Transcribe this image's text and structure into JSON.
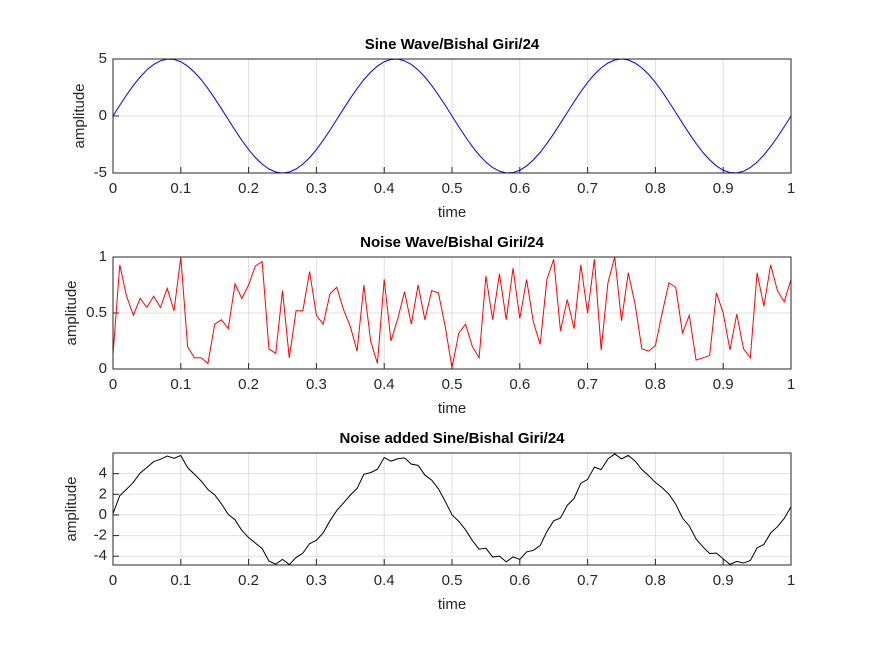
{
  "chart_data": [
    {
      "type": "line",
      "title": "Sine Wave/Bishal Giri/24",
      "xlabel": "time",
      "ylabel": "amplitude",
      "x": [
        0,
        0.01,
        0.02,
        0.03,
        0.04,
        0.05,
        0.06,
        0.07,
        0.08,
        0.09,
        0.1,
        0.11,
        0.12,
        0.13,
        0.14,
        0.15,
        0.16,
        0.17,
        0.18,
        0.19,
        0.2,
        0.21,
        0.22,
        0.23,
        0.24,
        0.25,
        0.26,
        0.27,
        0.28,
        0.29,
        0.3,
        0.31,
        0.32,
        0.33,
        0.34,
        0.35,
        0.36,
        0.37,
        0.38,
        0.39,
        0.4,
        0.41,
        0.42,
        0.43,
        0.44,
        0.45,
        0.46,
        0.47,
        0.48,
        0.49,
        0.5,
        0.51,
        0.52,
        0.53,
        0.54,
        0.55,
        0.56,
        0.57,
        0.58,
        0.59,
        0.6,
        0.61,
        0.62,
        0.63,
        0.64,
        0.65,
        0.66,
        0.67,
        0.68,
        0.69,
        0.7,
        0.71,
        0.72,
        0.73,
        0.74,
        0.75,
        0.76,
        0.77,
        0.78,
        0.79,
        0.8,
        0.81,
        0.82,
        0.83,
        0.84,
        0.85,
        0.86,
        0.87,
        0.88,
        0.89,
        0.9,
        0.91,
        0.92,
        0.93,
        0.94,
        0.95,
        0.96,
        0.97,
        0.98,
        0.99,
        1
      ],
      "series": [
        {
          "color": "#0000ff",
          "values": [
            0,
            0.94,
            1.84,
            2.68,
            3.42,
            4.05,
            4.52,
            4.84,
            4.99,
            4.96,
            4.76,
            4.38,
            3.85,
            3.19,
            2.41,
            1.55,
            0.63,
            -0.31,
            -1.24,
            -2.13,
            -2.94,
            -3.65,
            -4.22,
            -4.65,
            -4.91,
            -5,
            -4.91,
            -4.65,
            -4.22,
            -3.65,
            -2.94,
            -2.13,
            -1.24,
            -0.31,
            0.63,
            1.55,
            2.41,
            3.19,
            3.85,
            4.38,
            4.76,
            4.96,
            4.99,
            4.84,
            4.52,
            4.05,
            3.42,
            2.68,
            1.84,
            0.94,
            0,
            -0.94,
            -1.84,
            -2.68,
            -3.42,
            -4.05,
            -4.52,
            -4.84,
            -4.99,
            -4.96,
            -4.76,
            -4.38,
            -3.85,
            -3.19,
            -2.41,
            -1.55,
            -0.63,
            0.31,
            1.24,
            2.13,
            2.94,
            3.65,
            4.22,
            4.65,
            4.91,
            5,
            4.91,
            4.65,
            4.22,
            3.65,
            2.94,
            2.13,
            1.24,
            0.31,
            -0.63,
            -1.55,
            -2.41,
            -3.19,
            -3.85,
            -4.38,
            -4.76,
            -4.96,
            -4.99,
            -4.84,
            -4.52,
            -4.05,
            -3.42,
            -2.68,
            -1.84,
            -0.94,
            0
          ]
        }
      ],
      "xlim": [
        0,
        1
      ],
      "xticks": [
        0,
        0.1,
        0.2,
        0.3,
        0.4,
        0.5,
        0.6,
        0.7,
        0.8,
        0.9,
        1
      ],
      "ylim": [
        -5,
        5
      ],
      "yticks": [
        -5,
        0,
        5
      ],
      "grid": true
    },
    {
      "type": "line",
      "title": "Noise Wave/Bishal Giri/24",
      "xlabel": "time",
      "ylabel": "amplitude",
      "x": [
        0,
        0.01,
        0.02,
        0.03,
        0.04,
        0.05,
        0.06,
        0.07,
        0.08,
        0.09,
        0.1,
        0.11,
        0.12,
        0.13,
        0.14,
        0.15,
        0.16,
        0.17,
        0.18,
        0.19,
        0.2,
        0.21,
        0.22,
        0.23,
        0.24,
        0.25,
        0.26,
        0.27,
        0.28,
        0.29,
        0.3,
        0.31,
        0.32,
        0.33,
        0.34,
        0.35,
        0.36,
        0.37,
        0.38,
        0.39,
        0.4,
        0.41,
        0.42,
        0.43,
        0.44,
        0.45,
        0.46,
        0.47,
        0.48,
        0.49,
        0.5,
        0.51,
        0.52,
        0.53,
        0.54,
        0.55,
        0.56,
        0.57,
        0.58,
        0.59,
        0.6,
        0.61,
        0.62,
        0.63,
        0.64,
        0.65,
        0.66,
        0.67,
        0.68,
        0.69,
        0.7,
        0.71,
        0.72,
        0.73,
        0.74,
        0.75,
        0.76,
        0.77,
        0.78,
        0.79,
        0.8,
        0.81,
        0.82,
        0.83,
        0.84,
        0.85,
        0.86,
        0.87,
        0.88,
        0.89,
        0.9,
        0.91,
        0.92,
        0.93,
        0.94,
        0.95,
        0.96,
        0.97,
        0.98,
        0.99,
        1
      ],
      "series": [
        {
          "color": "#ff0000",
          "values": [
            0.13,
            0.93,
            0.65,
            0.48,
            0.63,
            0.55,
            0.65,
            0.55,
            0.72,
            0.52,
            1.0,
            0.2,
            0.1,
            0.1,
            0.05,
            0.4,
            0.44,
            0.36,
            0.76,
            0.63,
            0.75,
            0.92,
            0.96,
            0.18,
            0.14,
            0.7,
            0.1,
            0.52,
            0.52,
            0.87,
            0.48,
            0.4,
            0.67,
            0.73,
            0.53,
            0.38,
            0.16,
            0.75,
            0.25,
            0.05,
            0.8,
            0.25,
            0.45,
            0.69,
            0.4,
            0.75,
            0.44,
            0.7,
            0.68,
            0.38,
            0.01,
            0.32,
            0.4,
            0.2,
            0.1,
            0.83,
            0.44,
            0.85,
            0.44,
            0.9,
            0.45,
            0.8,
            0.42,
            0.22,
            0.8,
            0.98,
            0.34,
            0.62,
            0.36,
            0.93,
            0.5,
            0.98,
            0.17,
            0.77,
            1.0,
            0.43,
            0.86,
            0.58,
            0.18,
            0.16,
            0.21,
            0.5,
            0.77,
            0.73,
            0.32,
            0.48,
            0.08,
            0.1,
            0.12,
            0.68,
            0.5,
            0.17,
            0.49,
            0.18,
            0.1,
            0.86,
            0.56,
            0.93,
            0.7,
            0.6,
            0.8
          ]
        }
      ],
      "xlim": [
        0,
        1
      ],
      "xticks": [
        0,
        0.1,
        0.2,
        0.3,
        0.4,
        0.5,
        0.6,
        0.7,
        0.8,
        0.9,
        1
      ],
      "ylim": [
        0,
        1
      ],
      "yticks": [
        0,
        0.5,
        1
      ],
      "grid": true
    },
    {
      "type": "line",
      "title": "Noise added Sine/Bishal Giri/24",
      "xlabel": "time",
      "ylabel": "amplitude",
      "x": [
        0,
        0.01,
        0.02,
        0.03,
        0.04,
        0.05,
        0.06,
        0.07,
        0.08,
        0.09,
        0.1,
        0.11,
        0.12,
        0.13,
        0.14,
        0.15,
        0.16,
        0.17,
        0.18,
        0.19,
        0.2,
        0.21,
        0.22,
        0.23,
        0.24,
        0.25,
        0.26,
        0.27,
        0.28,
        0.29,
        0.3,
        0.31,
        0.32,
        0.33,
        0.34,
        0.35,
        0.36,
        0.37,
        0.38,
        0.39,
        0.4,
        0.41,
        0.42,
        0.43,
        0.44,
        0.45,
        0.46,
        0.47,
        0.48,
        0.49,
        0.5,
        0.51,
        0.52,
        0.53,
        0.54,
        0.55,
        0.56,
        0.57,
        0.58,
        0.59,
        0.6,
        0.61,
        0.62,
        0.63,
        0.64,
        0.65,
        0.66,
        0.67,
        0.68,
        0.69,
        0.7,
        0.71,
        0.72,
        0.73,
        0.74,
        0.75,
        0.76,
        0.77,
        0.78,
        0.79,
        0.8,
        0.81,
        0.82,
        0.83,
        0.84,
        0.85,
        0.86,
        0.87,
        0.88,
        0.89,
        0.9,
        0.91,
        0.92,
        0.93,
        0.94,
        0.95,
        0.96,
        0.97,
        0.98,
        0.99,
        1
      ],
      "series": [
        {
          "color": "#000000",
          "values": [
            0.13,
            1.87,
            2.49,
            3.16,
            4.05,
            4.6,
            5.17,
            5.39,
            5.71,
            5.48,
            5.76,
            4.58,
            3.95,
            3.29,
            2.46,
            1.95,
            1.07,
            0.05,
            -0.48,
            -1.5,
            -2.19,
            -2.73,
            -3.26,
            -4.47,
            -4.77,
            -4.3,
            -4.81,
            -4.13,
            -3.7,
            -2.78,
            -2.46,
            -1.73,
            -0.57,
            0.42,
            1.16,
            1.93,
            2.57,
            3.94,
            4.1,
            4.43,
            5.56,
            5.21,
            5.44,
            5.53,
            4.92,
            4.8,
            3.86,
            3.38,
            2.52,
            1.32,
            0.01,
            -0.62,
            -1.44,
            -2.48,
            -3.32,
            -3.22,
            -4.08,
            -3.99,
            -4.55,
            -4.06,
            -4.31,
            -3.58,
            -3.43,
            -2.97,
            -1.61,
            -0.57,
            -0.29,
            0.93,
            1.6,
            3.06,
            3.44,
            4.63,
            4.39,
            5.42,
            5.91,
            5.43,
            5.77,
            5.23,
            4.4,
            3.81,
            3.15,
            2.63,
            2.01,
            1.04,
            -0.31,
            -1.07,
            -2.33,
            -3.09,
            -3.73,
            -3.7,
            -4.26,
            -4.79,
            -4.5,
            -4.66,
            -4.42,
            -3.19,
            -2.86,
            -1.75,
            -1.14,
            -0.34,
            0.8
          ]
        }
      ],
      "xlim": [
        0,
        1
      ],
      "xticks": [
        0,
        0.1,
        0.2,
        0.3,
        0.4,
        0.5,
        0.6,
        0.7,
        0.8,
        0.9,
        1
      ],
      "ylim": [
        -4.85,
        6.0
      ],
      "yticks": [
        -4,
        -2,
        0,
        2,
        4
      ],
      "grid": true
    }
  ]
}
